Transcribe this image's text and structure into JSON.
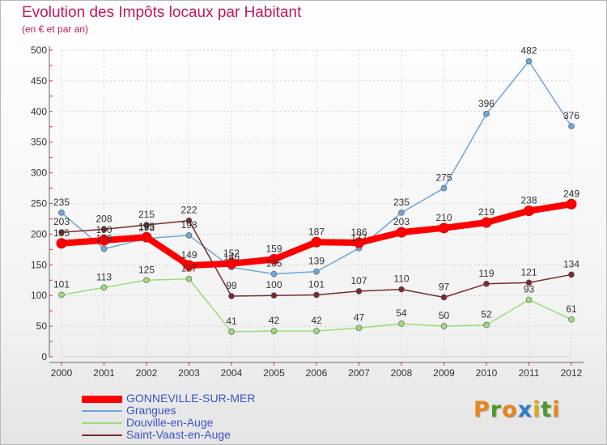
{
  "title": "Evolution des Impôts locaux par Habitant",
  "subtitle": "(en € et par an)",
  "logo": {
    "letters": [
      "P",
      "r",
      "o",
      "x",
      "i",
      "t",
      "i"
    ],
    "colors": [
      "#e8841c",
      "#4a9a2c",
      "#e8841c",
      "#2e7cc8",
      "#d9a81e",
      "#4a9a2c",
      "#e8841c"
    ]
  },
  "chart_data": {
    "type": "line",
    "x": [
      "2000",
      "2001",
      "2002",
      "2003",
      "2004",
      "2005",
      "2006",
      "2007",
      "2008",
      "2009",
      "2010",
      "2011",
      "2012"
    ],
    "ylim": [
      0,
      500
    ],
    "yticks": [
      "0",
      "50",
      "100",
      "150",
      "200",
      "250",
      "300",
      "350",
      "400",
      "450",
      "500"
    ],
    "grid": true,
    "legend_position": "bottom-left",
    "series": [
      {
        "name": "GONNEVILLE-SUR-MER",
        "color": "#ff0000",
        "emphasis": true,
        "values": [
          185,
          190,
          195,
          149,
          152,
          159,
          187,
          186,
          203,
          210,
          219,
          238,
          249
        ],
        "labels": [
          "185",
          "190",
          "195",
          "149",
          "152",
          "159",
          "187",
          "186",
          "203",
          "210",
          "219",
          "238",
          "249"
        ]
      },
      {
        "name": "Grangues",
        "color": "#6ea6d8",
        "emphasis": false,
        "values": [
          235,
          176,
          193,
          198,
          146,
          135,
          139,
          177,
          235,
          275,
          396,
          482,
          376
        ],
        "labels": [
          "235",
          "176",
          "193",
          "198",
          "146",
          "135",
          "139",
          "177",
          "235",
          "275",
          "396",
          "482",
          "376"
        ]
      },
      {
        "name": "Douville-en-Auge",
        "color": "#99dd77",
        "emphasis": false,
        "values": [
          101,
          113,
          125,
          127,
          41,
          42,
          42,
          47,
          54,
          50,
          52,
          93,
          61
        ],
        "labels": [
          "101",
          "113",
          "125",
          "127",
          "41",
          "42",
          "42",
          "47",
          "54",
          "50",
          "52",
          "93",
          "61"
        ]
      },
      {
        "name": "Saint-Vaast-en-Auge",
        "color": "#7a2a2a",
        "emphasis": false,
        "values": [
          203,
          208,
          215,
          222,
          99,
          100,
          101,
          107,
          110,
          97,
          119,
          121,
          134
        ],
        "labels": [
          "203",
          "208",
          "215",
          "222",
          "99",
          "100",
          "101",
          "107",
          "110",
          "97",
          "119",
          "121",
          "134"
        ]
      }
    ]
  }
}
